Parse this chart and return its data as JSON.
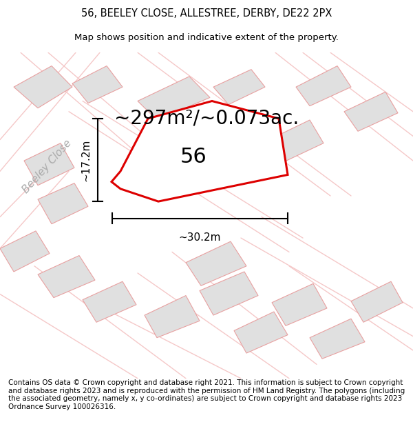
{
  "title_line1": "56, BEELEY CLOSE, ALLESTREE, DERBY, DE22 2PX",
  "title_line2": "Map shows position and indicative extent of the property.",
  "area_text": "~297m²/~0.073ac.",
  "number_label": "56",
  "dim_width": "~30.2m",
  "dim_height": "~17.2m",
  "street_label": "Beeley Close",
  "footer_text": "Contains OS data © Crown copyright and database right 2021. This information is subject to Crown copyright and database rights 2023 and is reproduced with the permission of HM Land Registry. The polygons (including the associated geometry, namely x, y co-ordinates) are subject to Crown copyright and database rights 2023 Ordnance Survey 100026316.",
  "bg_color": "#ffffff",
  "map_bg": "#ffffff",
  "plot_fill": "#ffffff",
  "plot_outline": "#dd0000",
  "neighbor_fill": "#e0e0e0",
  "neighbor_outline": "#e8a0a0",
  "road_color": "#f5c8c8",
  "title_fontsize": 10.5,
  "subtitle_fontsize": 9.5,
  "area_fontsize": 20,
  "label_fontsize": 22,
  "dim_fontsize": 11,
  "footer_fontsize": 7.5,
  "street_fontsize": 11
}
